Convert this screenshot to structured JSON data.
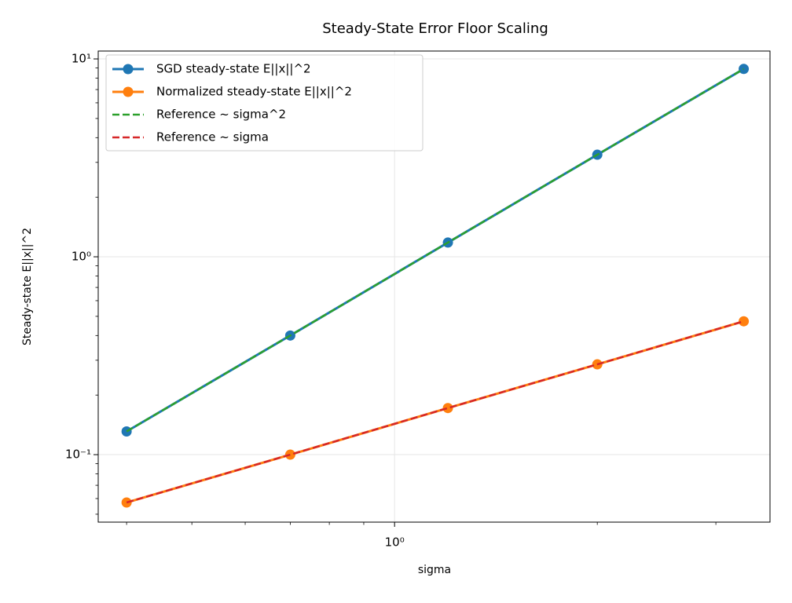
{
  "chart_data": {
    "type": "line",
    "title": "Steady-State Error Floor Scaling",
    "xlabel": "sigma",
    "ylabel": "Steady-state E||x||^2",
    "x": [
      0.4,
      0.7,
      1.2,
      2.0,
      3.3
    ],
    "series": [
      {
        "name": "SGD steady-state E||x||^2",
        "color": "#1f77b4",
        "values": [
          0.131,
          0.4,
          1.18,
          3.28,
          8.9
        ],
        "linestyle": "solid",
        "marker": true
      },
      {
        "name": "Normalized steady-state E||x||^2",
        "color": "#ff7f0e",
        "values": [
          0.0573,
          0.1,
          0.172,
          0.286,
          0.472
        ],
        "linestyle": "solid",
        "marker": true
      },
      {
        "name": "Reference ~ sigma^2",
        "color": "#2ca02c",
        "values": [
          0.131,
          0.4,
          1.18,
          3.28,
          8.9
        ],
        "linestyle": "dashed",
        "marker": false
      },
      {
        "name": "Reference ~ sigma",
        "color": "#d62728",
        "values": [
          0.0573,
          0.1,
          0.172,
          0.286,
          0.472
        ],
        "linestyle": "dashed",
        "marker": false
      }
    ],
    "xscale": "log",
    "yscale": "log",
    "xlim": [
      0.363,
      3.61
    ],
    "ylim": [
      0.0456,
      10.96
    ],
    "xticks": [
      {
        "value": 1,
        "label": "10⁰"
      }
    ],
    "yticks": [
      {
        "value": 0.1,
        "label": "10⁻¹"
      },
      {
        "value": 1,
        "label": "10⁰"
      },
      {
        "value": 10,
        "label": "10¹"
      }
    ],
    "xminorticks": [
      0.4,
      0.5,
      0.6,
      0.7,
      0.8,
      0.9,
      2,
      3
    ],
    "yminorticks": [
      0.05,
      0.06,
      0.07,
      0.08,
      0.09,
      0.2,
      0.3,
      0.4,
      0.5,
      0.6,
      0.7,
      0.8,
      0.9,
      2,
      3,
      4,
      5,
      6,
      7,
      8,
      9
    ],
    "grid": true,
    "legend": "upper left"
  }
}
